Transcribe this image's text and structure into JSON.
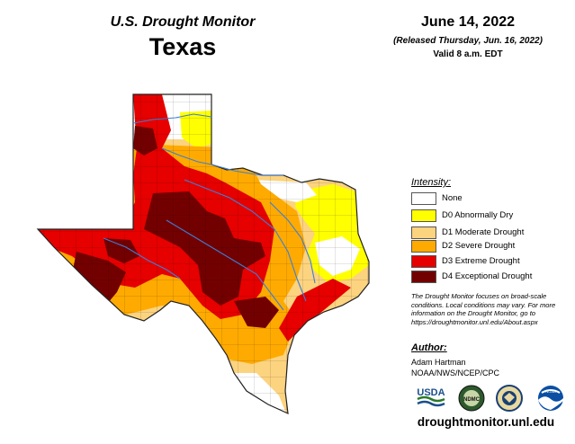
{
  "header": {
    "subtitle": "U.S. Drought Monitor",
    "state": "Texas",
    "date": "June 14, 2022",
    "released": "(Released Thursday, Jun. 16, 2022)",
    "valid": "Valid 8 a.m. EDT"
  },
  "legend": {
    "title": "Intensity:",
    "items": [
      {
        "label": "None",
        "color": "#ffffff"
      },
      {
        "label": "D0 Abnormally Dry",
        "color": "#ffff00"
      },
      {
        "label": "D1 Moderate Drought",
        "color": "#fcd37f"
      },
      {
        "label": "D2 Severe Drought",
        "color": "#ffaa00"
      },
      {
        "label": "D3 Extreme Drought",
        "color": "#e60000"
      },
      {
        "label": "D4 Exceptional Drought",
        "color": "#730000"
      }
    ]
  },
  "note": "The Drought Monitor focuses on broad-scale conditions. Local conditions may vary. For more information on the Drought Monitor, go to https://droughtmonitor.unl.edu/About.aspx",
  "author": {
    "title": "Author:",
    "name": "Adam Hartman",
    "org": "NOAA/NWS/NCEP/CPC"
  },
  "logos": {
    "usda": "USDA",
    "ndmc": "NDMC",
    "noaa": "NOAA"
  },
  "site": "droughtmonitor.unl.edu"
}
